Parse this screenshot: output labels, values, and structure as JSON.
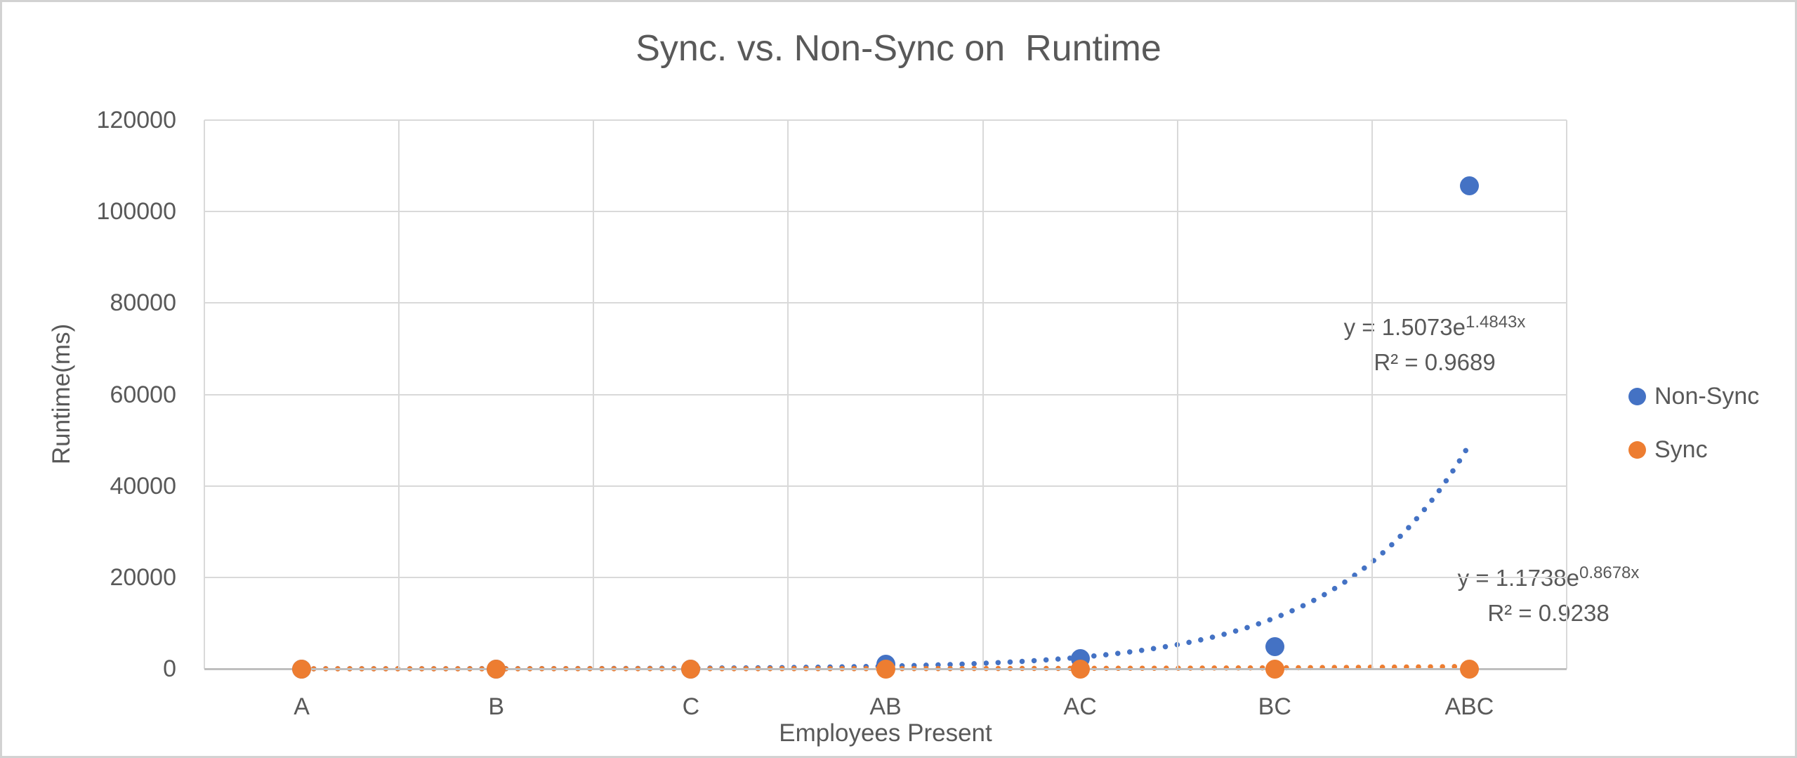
{
  "window": {
    "background": "#ffffff",
    "border_color": "#d2d2d2"
  },
  "chart_data": {
    "type": "scatter",
    "title": "Sync. vs. Non-Sync on  Runtime",
    "xlabel": "Employees Present",
    "ylabel": "Runtime(ms)",
    "categories": [
      "A",
      "B",
      "C",
      "AB",
      "AC",
      "BC",
      "ABC"
    ],
    "series": [
      {
        "name": "Non-Sync",
        "color": "#4472C4",
        "values": [
          0,
          0,
          0,
          1000,
          2300,
          4800,
          105700
        ]
      },
      {
        "name": "Sync",
        "color": "#ED7D31",
        "values": [
          0,
          0,
          0,
          0,
          0,
          0,
          0
        ]
      }
    ],
    "trendlines": [
      {
        "series": "Non-Sync",
        "type": "exponential",
        "coefficient": 1.5073,
        "rate": 1.4843,
        "equation_prefix": "y = 1.5073e",
        "equation_exponent": "1.4843x",
        "r2_label": "R² = 0.9689",
        "r_squared": 0.9689,
        "color": "#4472C4",
        "style": "dotted"
      },
      {
        "series": "Sync",
        "type": "exponential",
        "coefficient": 1.1738,
        "rate": 0.8678,
        "equation_prefix": "y = 1.1738e",
        "equation_exponent": "0.8678x",
        "r2_label": "R² = 0.9238",
        "r_squared": 0.9238,
        "color": "#ED7D31",
        "style": "dotted"
      }
    ],
    "y_ticks": [
      0,
      20000,
      40000,
      60000,
      80000,
      100000,
      120000
    ],
    "ylim": [
      0,
      120000
    ],
    "grid": true,
    "legend": {
      "position": "right",
      "items": [
        {
          "label": "Non-Sync",
          "color": "#4472C4"
        },
        {
          "label": "Sync",
          "color": "#ED7D31"
        }
      ]
    },
    "text_color": "#595959",
    "gridline_color": "#D9D9D9",
    "axis_line_color": "#BFBFBF"
  }
}
